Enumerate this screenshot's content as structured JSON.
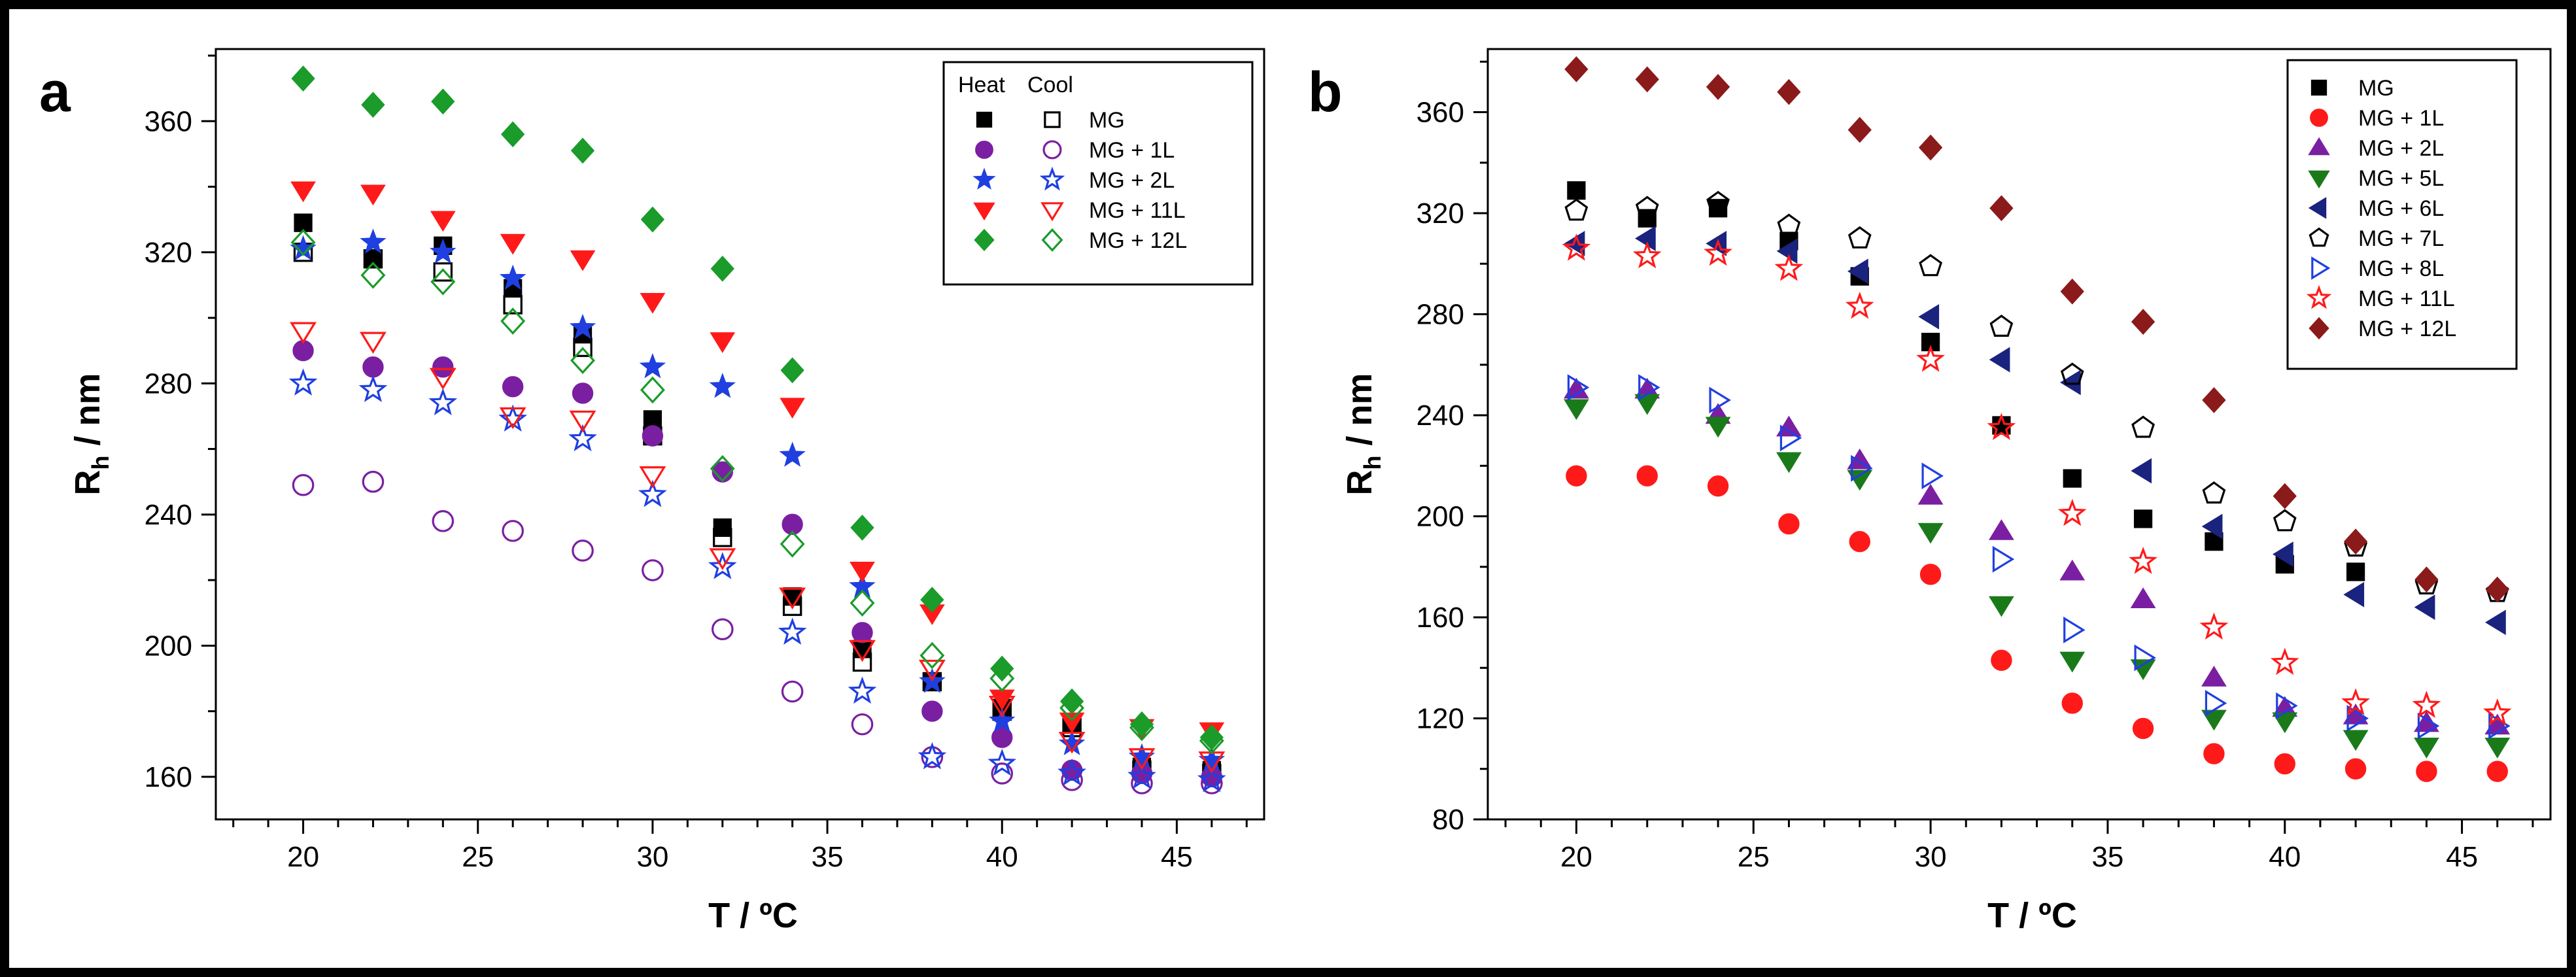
{
  "chart_data": [
    {
      "panel": "a",
      "type": "scatter",
      "xlabel": "T / ºC",
      "ylabel_main": "R",
      "ylabel_sub": "h",
      "ylabel_rest": " / nm",
      "xlim": [
        17.5,
        47.5
      ],
      "ylim": [
        147,
        382
      ],
      "xticks": [
        20,
        25,
        30,
        35,
        40,
        45
      ],
      "yticks": [
        160,
        200,
        240,
        280,
        320,
        360
      ],
      "legend_position": "top-right",
      "legend_headers": [
        "Heat",
        "Cool"
      ],
      "legend_labels": [
        "MG",
        "MG + 1L",
        "MG + 2L",
        "MG + 11L",
        "MG + 12L"
      ],
      "x": [
        20,
        22,
        24,
        26,
        28,
        30,
        32,
        34,
        36,
        38,
        40,
        42,
        44,
        46
      ],
      "series": [
        {
          "name": "MG",
          "mode": "Heat",
          "marker": "square",
          "filled": true,
          "color": "#000000",
          "values": [
            329,
            318,
            322,
            309,
            295,
            269,
            236,
            215,
            199,
            189,
            181,
            176,
            163,
            162
          ]
        },
        {
          "name": "MG",
          "mode": "Cool",
          "marker": "square",
          "filled": false,
          "color": "#000000",
          "values": [
            320,
            318,
            314,
            304,
            291,
            264,
            233,
            212,
            195,
            189,
            180,
            175,
            162,
            161
          ]
        },
        {
          "name": "MG + 1L",
          "mode": "Heat",
          "marker": "circle",
          "filled": true,
          "color": "#7b1fa2",
          "values": [
            290,
            285,
            285,
            279,
            277,
            264,
            253,
            237,
            204,
            180,
            172,
            162,
            161,
            160
          ]
        },
        {
          "name": "MG + 1L",
          "mode": "Cool",
          "marker": "circle",
          "filled": false,
          "color": "#7b1fa2",
          "values": [
            249,
            250,
            238,
            235,
            229,
            223,
            205,
            186,
            176,
            166,
            161,
            159,
            158,
            158
          ]
        },
        {
          "name": "MG + 2L",
          "mode": "Heat",
          "marker": "star",
          "filled": true,
          "color": "#1f3fe0",
          "values": [
            321,
            323,
            320,
            312,
            297,
            285,
            279,
            258,
            218,
            189,
            177,
            170,
            166,
            165
          ]
        },
        {
          "name": "MG + 2L",
          "mode": "Cool",
          "marker": "star",
          "filled": false,
          "color": "#1f3fe0",
          "values": [
            280,
            278,
            274,
            269,
            263,
            246,
            224,
            204,
            186,
            166,
            164,
            161,
            160,
            159
          ]
        },
        {
          "name": "MG + 11L",
          "mode": "Heat",
          "marker": "triangle-down",
          "filled": true,
          "color": "#ff1a1a",
          "values": [
            339,
            338,
            330,
            323,
            318,
            305,
            293,
            273,
            223,
            210,
            184,
            177,
            175,
            174
          ]
        },
        {
          "name": "MG + 11L",
          "mode": "Cool",
          "marker": "triangle-down",
          "filled": false,
          "color": "#ff1a1a",
          "values": [
            296,
            293,
            282,
            270,
            269,
            252,
            227,
            215,
            199,
            193,
            182,
            171,
            166,
            165
          ]
        },
        {
          "name": "MG + 12L",
          "mode": "Heat",
          "marker": "diamond",
          "filled": true,
          "color": "#1a9b2a",
          "values": [
            373,
            365,
            366,
            356,
            351,
            330,
            315,
            284,
            236,
            214,
            193,
            183,
            176,
            172
          ]
        },
        {
          "name": "MG + 12L",
          "mode": "Cool",
          "marker": "diamond",
          "filled": false,
          "color": "#1a9b2a",
          "values": [
            323,
            313,
            311,
            299,
            287,
            278,
            254,
            231,
            213,
            197,
            190,
            181,
            175,
            171
          ]
        }
      ]
    },
    {
      "panel": "b",
      "type": "scatter",
      "xlabel": "T / ºC",
      "ylabel_main": "R",
      "ylabel_sub": "h",
      "ylabel_rest": " / nm",
      "xlim": [
        17.5,
        47.5
      ],
      "ylim": [
        80,
        385
      ],
      "xticks": [
        20,
        25,
        30,
        35,
        40,
        45
      ],
      "yticks": [
        80,
        120,
        160,
        200,
        240,
        280,
        320,
        360
      ],
      "legend_position": "top-right",
      "x": [
        20,
        22,
        24,
        26,
        28,
        30,
        32,
        34,
        36,
        38,
        40,
        42,
        44,
        46
      ],
      "series": [
        {
          "name": "MG",
          "marker": "square",
          "filled": true,
          "color": "#000000",
          "values": [
            329,
            318,
            322,
            309,
            295,
            269,
            236,
            215,
            199,
            190,
            181,
            178,
            null,
            null
          ]
        },
        {
          "name": "MG + 1L",
          "marker": "circle",
          "filled": true,
          "color": "#ff1a1a",
          "values": [
            216,
            216,
            212,
            197,
            190,
            177,
            143,
            126,
            116,
            106,
            102,
            100,
            99,
            99
          ]
        },
        {
          "name": "MG + 2L",
          "marker": "triangle-up",
          "filled": true,
          "color": "#7b1fa2",
          "values": [
            250,
            250,
            240,
            235,
            222,
            208,
            194,
            178,
            167,
            136,
            124,
            121,
            118,
            117
          ]
        },
        {
          "name": "MG + 5L",
          "marker": "triangle-down",
          "filled": true,
          "color": "#1a7a1a",
          "values": [
            243,
            245,
            236,
            222,
            215,
            194,
            165,
            143,
            140,
            120,
            119,
            112,
            109,
            109
          ]
        },
        {
          "name": "MG + 6L",
          "marker": "triangle-left",
          "filled": true,
          "color": "#1a237e",
          "values": [
            308,
            310,
            308,
            305,
            297,
            279,
            262,
            253,
            218,
            196,
            185,
            169,
            164,
            158
          ]
        },
        {
          "name": "MG + 7L",
          "marker": "pentagon",
          "filled": false,
          "color": "#000000",
          "values": [
            321,
            322,
            324,
            315,
            310,
            299,
            275,
            256,
            235,
            209,
            198,
            188,
            173,
            170
          ]
        },
        {
          "name": "MG + 8L",
          "marker": "triangle-right",
          "filled": false,
          "color": "#1f3fe0",
          "values": [
            251,
            251,
            246,
            231,
            219,
            216,
            183,
            155,
            144,
            126,
            125,
            120,
            117,
            117
          ]
        },
        {
          "name": "MG + 11L",
          "marker": "star",
          "filled": false,
          "color": "#ff1a1a",
          "values": [
            306,
            303,
            304,
            298,
            283,
            262,
            235,
            201,
            182,
            156,
            142,
            126,
            125,
            122
          ]
        },
        {
          "name": "MG + 12L",
          "marker": "diamond",
          "filled": true,
          "color": "#8b1a1a",
          "values": [
            377,
            373,
            370,
            368,
            353,
            346,
            322,
            289,
            277,
            246,
            208,
            190,
            175,
            171
          ]
        }
      ]
    }
  ]
}
